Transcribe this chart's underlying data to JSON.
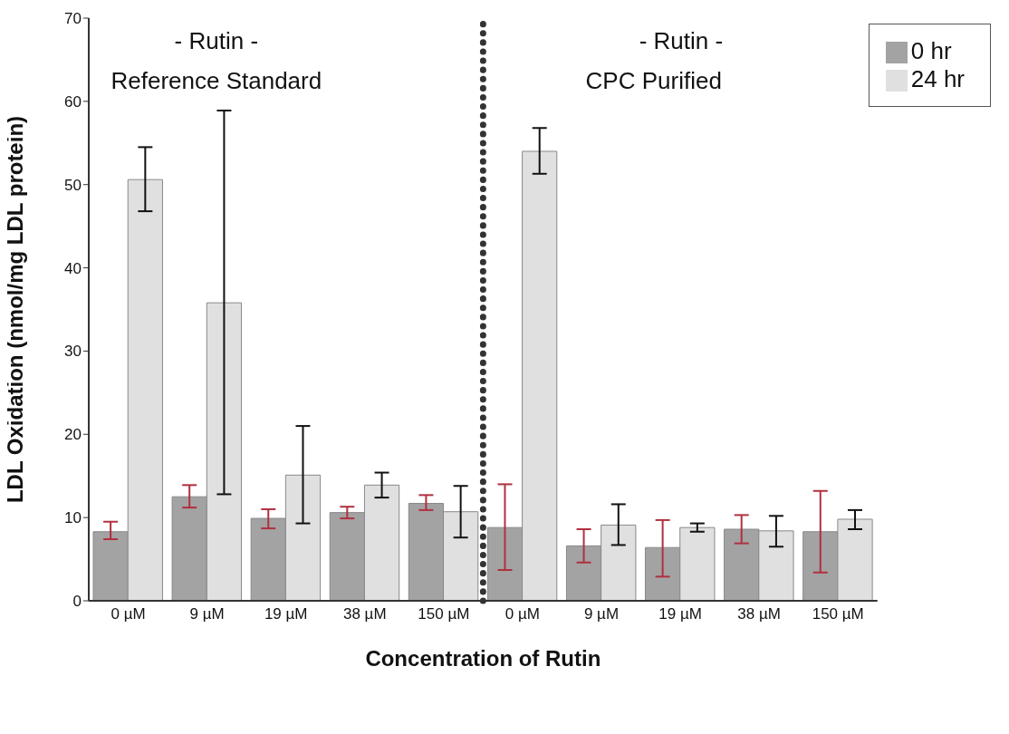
{
  "chart_data": {
    "type": "bar",
    "xlabel": "Concentration of Rutin",
    "ylabel": "LDL Oxidation (nmol/mg LDL protein)",
    "categories": [
      "0 µM",
      "9 µM",
      "19 µM",
      "38 µM",
      "150 µM",
      "0 µM",
      "9 µM",
      "19 µM",
      "38 µM",
      "150 µM"
    ],
    "series": [
      {
        "name": "0 hr",
        "color": "#a3a3a3",
        "values": [
          8.3,
          12.5,
          9.9,
          10.6,
          11.7,
          8.8,
          6.6,
          6.4,
          8.6,
          8.3
        ],
        "errors": [
          [
            7.4,
            9.5
          ],
          [
            11.2,
            13.9
          ],
          [
            8.7,
            11.0
          ],
          [
            9.9,
            11.3
          ],
          [
            10.9,
            12.7
          ],
          [
            3.7,
            14.0
          ],
          [
            4.6,
            8.6
          ],
          [
            2.9,
            9.7
          ],
          [
            6.9,
            10.3
          ],
          [
            3.4,
            13.2
          ]
        ]
      },
      {
        "name": "24 hr",
        "color": "#e0e0e0",
        "values": [
          50.6,
          35.8,
          15.1,
          13.9,
          10.7,
          54.0,
          9.1,
          8.8,
          8.4,
          9.8
        ],
        "errors": [
          [
            46.8,
            54.5
          ],
          [
            12.8,
            58.9
          ],
          [
            9.3,
            21.0
          ],
          [
            12.4,
            15.4
          ],
          [
            7.6,
            13.8
          ],
          [
            51.3,
            56.8
          ],
          [
            6.7,
            11.6
          ],
          [
            8.3,
            9.3
          ],
          [
            6.5,
            10.2
          ],
          [
            8.6,
            10.9
          ]
        ]
      }
    ],
    "ylim": [
      0,
      70
    ],
    "yticks": [
      0,
      10,
      20,
      30,
      40,
      50,
      60,
      70
    ],
    "annotations": [
      "- Rutin -",
      "Reference Standard",
      "- Rutin -",
      "CPC Purified"
    ],
    "legend": "top right",
    "grid": false
  }
}
